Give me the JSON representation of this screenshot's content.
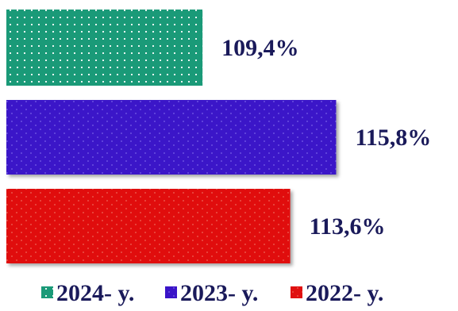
{
  "chart_data": {
    "type": "bar",
    "orientation": "horizontal",
    "categories": [
      "2024- y.",
      "2023- y.",
      "2022- y."
    ],
    "values": [
      109.4,
      115.8,
      113.6
    ],
    "value_labels": [
      "109,4%",
      "115,8%",
      "113,6%"
    ],
    "series_colors": [
      "#1a9a78",
      "#3a14c8",
      "#e01010"
    ],
    "label_color": "#1a1a5a",
    "xlim": [
      100,
      117
    ],
    "legend": {
      "placement": "bottom",
      "entries": [
        {
          "label": "2024- y.",
          "color": "#1a9a78"
        },
        {
          "label": "2023- y.",
          "color": "#3a14c8"
        },
        {
          "label": "2022- y.",
          "color": "#e01010"
        }
      ]
    },
    "grid": false
  }
}
